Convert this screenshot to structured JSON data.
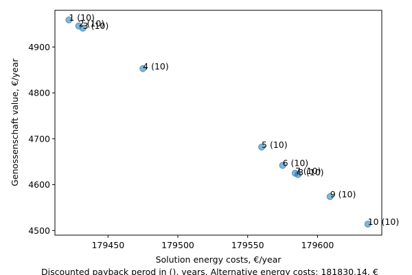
{
  "chart_data": {
    "type": "scatter",
    "xlabel": "Solution energy costs, €/year",
    "ylabel": "Genossenschaft value, €/year",
    "caption": "Discounted payback perod in (), years. Alternative energy costs: 181830.14, €",
    "xlim": [
      179412,
      179646
    ],
    "ylim": [
      4490,
      4980
    ],
    "x_ticks": [
      179450,
      179500,
      179550,
      179600
    ],
    "y_ticks": [
      4500,
      4600,
      4700,
      4800,
      4900
    ],
    "x_tick_labels": [
      "179450",
      "179500",
      "179550",
      "179600"
    ],
    "y_tick_labels": [
      "4500",
      "4600",
      "4700",
      "4800",
      "4900"
    ],
    "marker_color": "#1f77b4",
    "points": [
      {
        "x": 179422,
        "y": 4959,
        "label": "1 (10)"
      },
      {
        "x": 179429,
        "y": 4946,
        "label": "2 (10)"
      },
      {
        "x": 179432,
        "y": 4941,
        "label": "3 (10)"
      },
      {
        "x": 179475,
        "y": 4853,
        "label": "4 (10)"
      },
      {
        "x": 179560,
        "y": 4682,
        "label": "5 (10)"
      },
      {
        "x": 179575,
        "y": 4642,
        "label": "6 (10)"
      },
      {
        "x": 179584,
        "y": 4625,
        "label": "7 (10)"
      },
      {
        "x": 179586,
        "y": 4622,
        "label": "8 (10)"
      },
      {
        "x": 179609,
        "y": 4574,
        "label": "9 (10)"
      },
      {
        "x": 179636,
        "y": 4514,
        "label": "10 (10)"
      }
    ]
  }
}
